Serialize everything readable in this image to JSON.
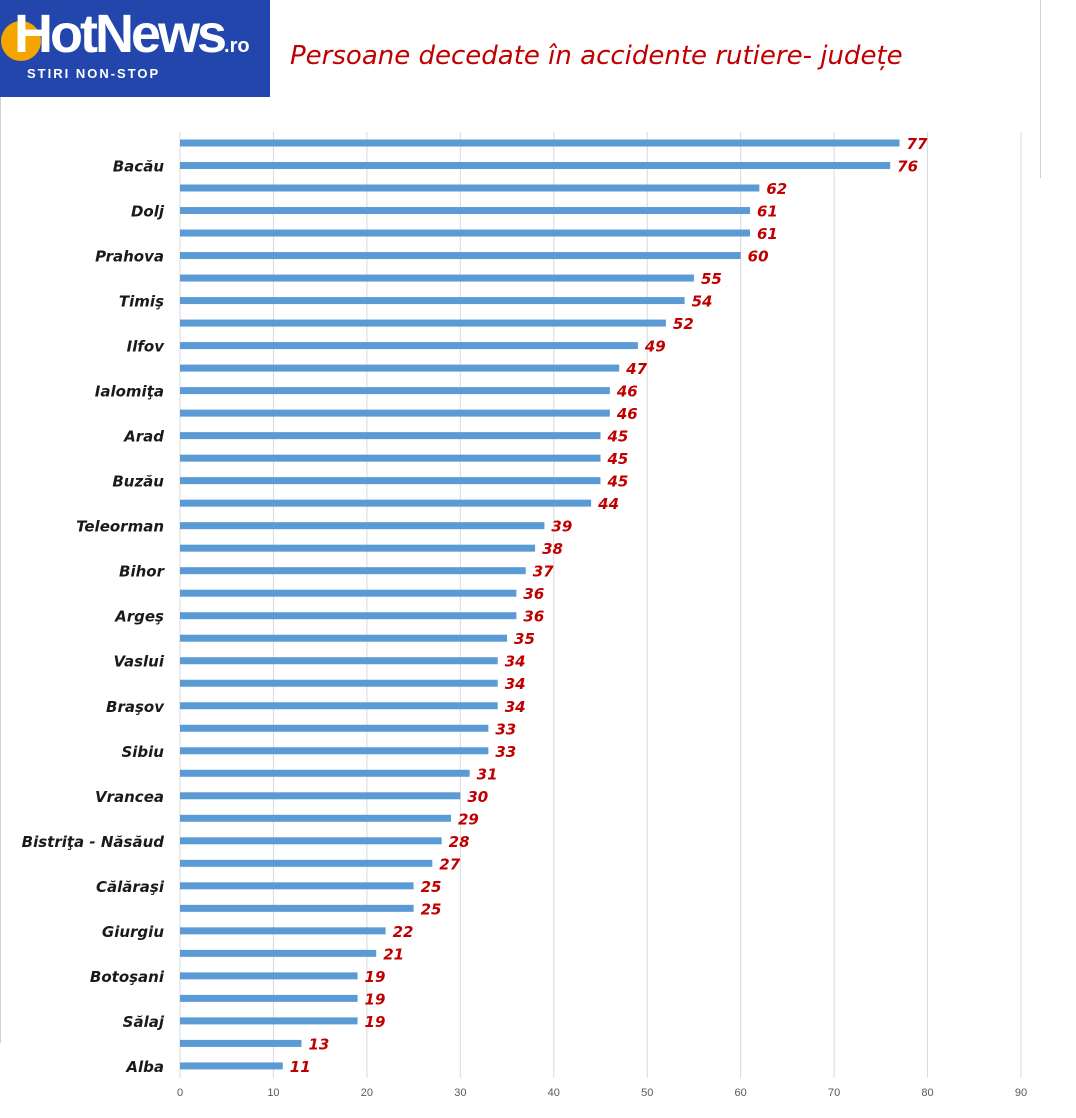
{
  "logo": {
    "name": "HotNews",
    "suffix": ".ro",
    "tagline": "STIRI NON-STOP"
  },
  "title": "Persoane decedate în accidente rutiere- județe",
  "colors": {
    "bar": "#5b9bd5",
    "data_label": "#c00000",
    "logo_bg": "#2346ad",
    "title": "#c00000"
  },
  "chart_data": {
    "type": "bar",
    "orientation": "horizontal",
    "title": "Persoane decedate în accidente rutiere- județe",
    "categories": [
      "",
      "Bacău",
      "",
      "Dolj",
      "",
      "Prahova",
      "",
      "Timiş",
      "",
      "Ilfov",
      "",
      "Ialomiţa",
      "",
      "Arad",
      "",
      "Buzău",
      "",
      "Teleorman",
      "",
      "Bihor",
      "",
      "Argeş",
      "",
      "Vaslui",
      "",
      "Braşov",
      "",
      "Sibiu",
      "",
      "Vrancea",
      "",
      "Bistriţa - Năsăud",
      "",
      "Călăraşi",
      "",
      "Giurgiu",
      "",
      "Botoşani",
      "",
      "Sălaj",
      "",
      "Alba"
    ],
    "values": [
      77,
      76,
      62,
      61,
      61,
      60,
      55,
      54,
      52,
      49,
      47,
      46,
      46,
      45,
      45,
      45,
      44,
      39,
      38,
      37,
      36,
      36,
      35,
      34,
      34,
      34,
      33,
      33,
      31,
      30,
      29,
      28,
      27,
      25,
      25,
      22,
      21,
      19,
      19,
      19,
      13,
      11
    ],
    "xlim": [
      0,
      90
    ],
    "xticks": [
      0,
      10,
      20,
      30,
      40,
      50,
      60,
      70,
      80,
      90
    ],
    "grid": "vertical",
    "data_labels": true,
    "legend": "none"
  }
}
